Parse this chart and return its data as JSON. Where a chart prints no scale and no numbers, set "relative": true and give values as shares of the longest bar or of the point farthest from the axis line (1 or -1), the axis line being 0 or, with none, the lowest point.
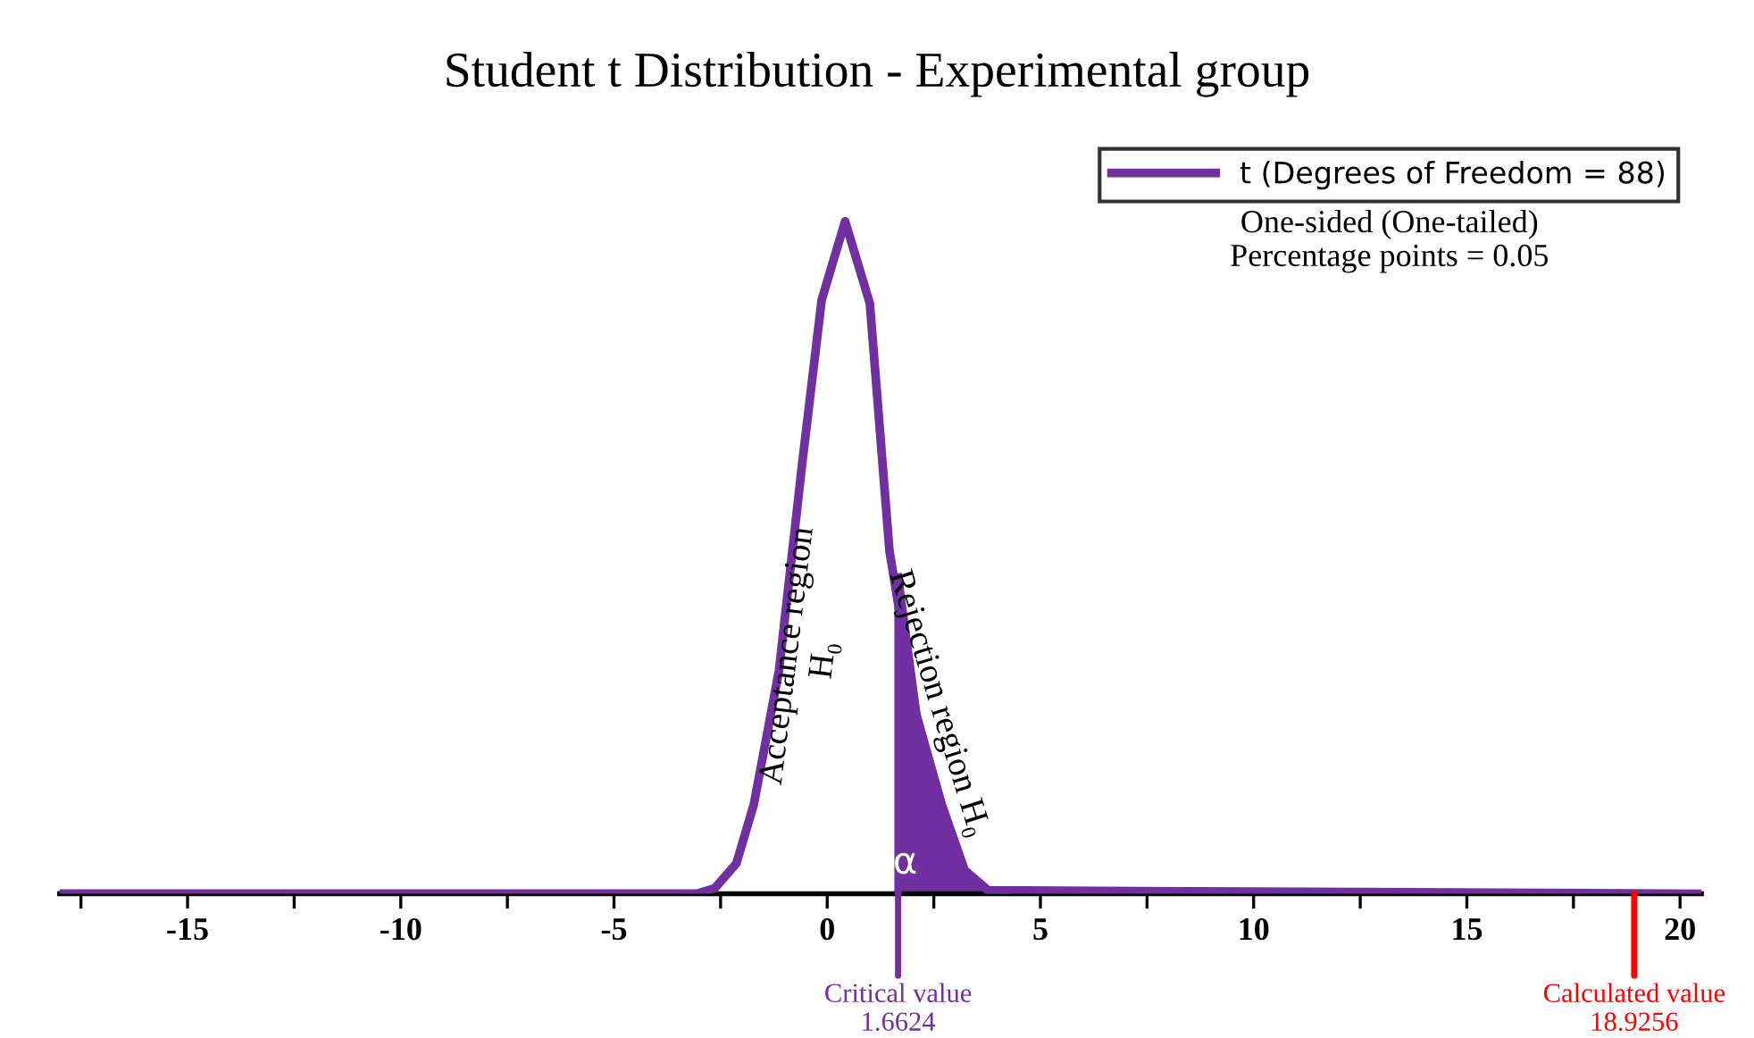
{
  "chart_data": {
    "type": "line",
    "title": "Student t Distribution - Experimental group",
    "relative": true,
    "series": [
      {
        "name": "t (Degrees of Freedom = 88)",
        "color": "#7030a0",
        "x": [
          -18,
          -3.05,
          -2.64,
          -2.13,
          -1.72,
          -1.13,
          -0.59,
          -0.13,
          0.42,
          1.0,
          1.46,
          2.09,
          2.68,
          3.22,
          3.77,
          20.5
        ],
        "values": [
          0,
          0,
          0.008,
          0.045,
          0.133,
          0.332,
          0.638,
          0.883,
          1.0,
          0.878,
          0.51,
          0.266,
          0.133,
          0.035,
          0.005,
          0
        ]
      },
      {
        "type": "area",
        "color": "#7030a0",
        "x": [
          1.6624,
          2.09,
          2.68,
          3.22,
          3.77,
          4.2
        ],
        "values": [
          0.47,
          0.266,
          0.133,
          0.035,
          0.005,
          0
        ]
      }
    ],
    "xlim": [
      -18,
      20.5
    ],
    "xticks": [
      {
        "value": -17.5,
        "label": null
      },
      -15,
      {
        "value": -12.5,
        "label": null
      },
      -10,
      {
        "value": -7.5,
        "label": null
      },
      -5,
      {
        "value": -2.5,
        "label": null
      },
      0,
      {
        "value": 2.5,
        "label": null
      },
      5,
      {
        "value": 7.5,
        "label": null
      },
      10,
      {
        "value": 12.5,
        "label": null
      },
      15,
      {
        "value": 17.5,
        "label": null
      },
      20
    ],
    "annotations": [
      "Acceptance region\nH₀",
      "Rejection region H₀",
      "α",
      "One-sided (One-tailed)\nPercentage points = 0.05",
      {
        "text": "Critical value\n1.6624",
        "x": 1.6624,
        "y": 0
      },
      {
        "text": "Calculated value\n18.9256",
        "x": 18.9256,
        "y": 0
      }
    ],
    "legend": "top right",
    "grid": false,
    "marker": "none",
    "line_style": "solid"
  }
}
